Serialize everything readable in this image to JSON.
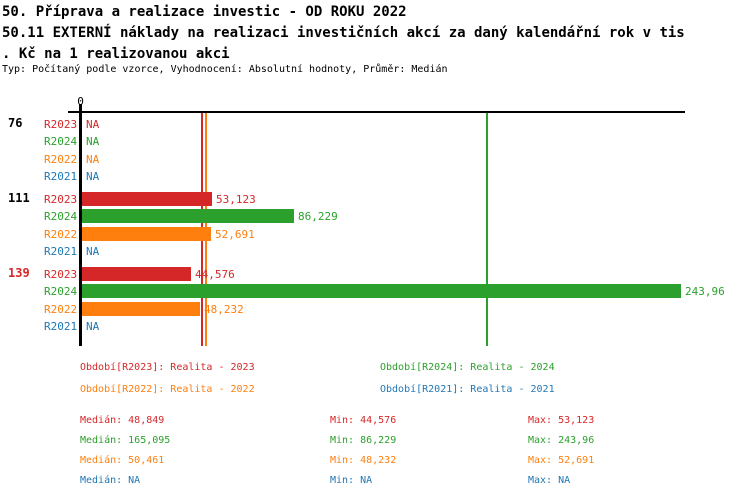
{
  "colors": {
    "R2023": "#d62728",
    "R2024": "#2ca02c",
    "R2022": "#ff7f0e",
    "R2021": "#1f77b4",
    "text": "#000000"
  },
  "header": {
    "title_line1": "50. Příprava a realizace investic - OD ROKU 2022",
    "title_line2": "50.11 EXTERNÍ náklady na realizaci investičních akcí za daný kalendářní rok v tis",
    "title_line3": ". Kč na 1 realizovanou akci",
    "subtitle": "Typ: Počítaný podle vzorce, Vyhodnocení: Absolutní hodnoty, Průměr: Medián"
  },
  "chart_data": {
    "type": "bar",
    "orientation": "horizontal",
    "unit": "tis. Kč na 1 realizovanou akci",
    "axis": {
      "zero_label": "0",
      "xmin": 0,
      "xmax_approx": 245
    },
    "series_order": [
      "R2023",
      "R2024",
      "R2022",
      "R2021"
    ],
    "groups": [
      {
        "label": "76",
        "label_color": "#000000",
        "rows": [
          {
            "series": "R2023",
            "value": null,
            "display": "NA"
          },
          {
            "series": "R2024",
            "value": null,
            "display": "NA"
          },
          {
            "series": "R2022",
            "value": null,
            "display": "NA"
          },
          {
            "series": "R2021",
            "value": null,
            "display": "NA"
          }
        ]
      },
      {
        "label": "111",
        "label_color": "#000000",
        "rows": [
          {
            "series": "R2023",
            "value": 53.123,
            "display": "53,123"
          },
          {
            "series": "R2024",
            "value": 86.229,
            "display": "86,229"
          },
          {
            "series": "R2022",
            "value": 52.691,
            "display": "52,691"
          },
          {
            "series": "R2021",
            "value": null,
            "display": "NA"
          }
        ]
      },
      {
        "label": "139",
        "label_color": "#d62728",
        "rows": [
          {
            "series": "R2023",
            "value": 44.576,
            "display": "44,576"
          },
          {
            "series": "R2024",
            "value": 243.96,
            "display": "243,96"
          },
          {
            "series": "R2022",
            "value": 48.232,
            "display": "48,232"
          },
          {
            "series": "R2021",
            "value": null,
            "display": "NA"
          }
        ]
      }
    ],
    "median_lines": [
      {
        "series": "R2023",
        "value": 48.849
      },
      {
        "series": "R2022",
        "value": 50.461
      },
      {
        "series": "R2024",
        "value": 165.095
      }
    ]
  },
  "legend": [
    {
      "series": "R2023",
      "label": "Období[R2023]: Realita - 2023"
    },
    {
      "series": "R2024",
      "label": "Období[R2024]: Realita - 2024"
    },
    {
      "series": "R2022",
      "label": "Období[R2022]: Realita - 2022"
    },
    {
      "series": "R2021",
      "label": "Období[R2021]: Realita - 2021"
    }
  ],
  "stats": [
    {
      "series": "R2023",
      "median": "Medián: 48,849",
      "min": "Min: 44,576",
      "max": "Max: 53,123"
    },
    {
      "series": "R2024",
      "median": "Medián: 165,095",
      "min": "Min: 86,229",
      "max": "Max: 243,96"
    },
    {
      "series": "R2022",
      "median": "Medián: 50,461",
      "min": "Min: 48,232",
      "max": "Max: 52,691"
    },
    {
      "series": "R2021",
      "median": "Medián: NA",
      "min": "Min: NA",
      "max": "Max: NA"
    }
  ]
}
